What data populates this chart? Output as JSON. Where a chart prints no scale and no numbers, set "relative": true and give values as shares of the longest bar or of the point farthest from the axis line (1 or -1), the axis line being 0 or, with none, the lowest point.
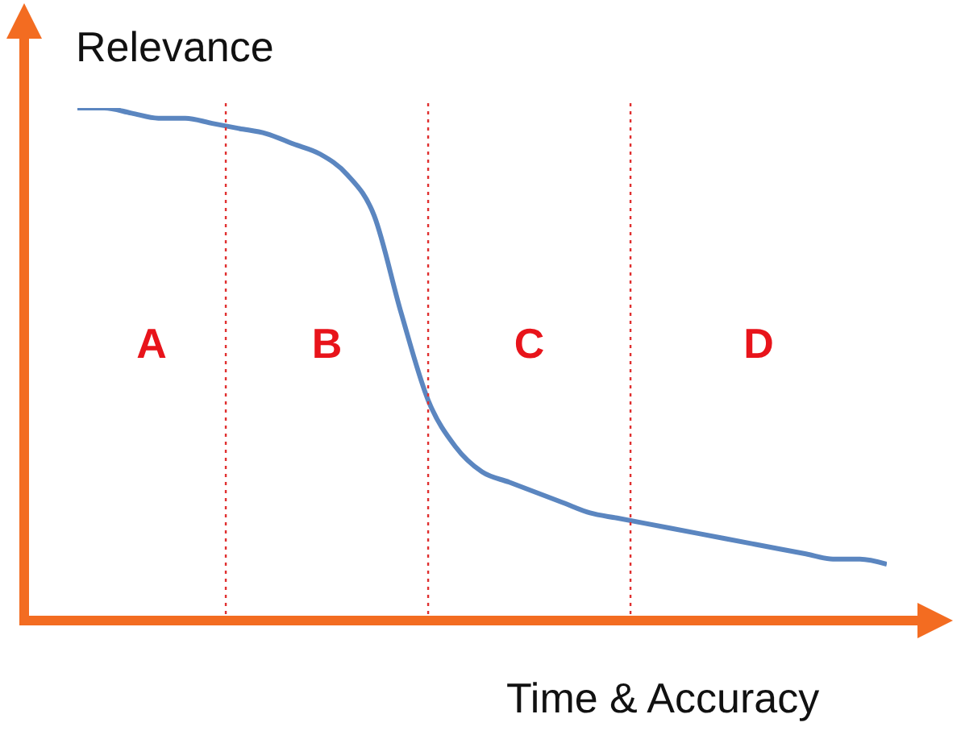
{
  "chart_data": {
    "type": "line",
    "relative": true,
    "xlabel": "Time & Accuracy",
    "ylabel": "Relevance",
    "categories": [
      null,
      null,
      null,
      null,
      null,
      null,
      null,
      null,
      null,
      null,
      null,
      null,
      null,
      null,
      null,
      null,
      null,
      null,
      null,
      null,
      null,
      null,
      null,
      null,
      null,
      null,
      null,
      null,
      null,
      null,
      null
    ],
    "series": [
      {
        "color": "#5b86c0",
        "values": [
          1,
          1,
          0.99,
          0.98,
          0.98,
          0.97,
          0.96,
          0.95,
          0.93,
          0.91,
          0.87,
          0.79,
          0.6,
          0.43,
          0.34,
          0.29,
          0.27,
          0.25,
          0.23,
          0.21,
          0.2,
          0.19,
          0.18,
          0.17,
          0.16,
          0.15,
          0.14,
          0.13,
          0.12,
          0.12,
          0.11
        ]
      }
    ],
    "annotations": [
      "A",
      "B",
      "C",
      "D"
    ],
    "marker": "none",
    "line_style": "solid",
    "grid": false,
    "legend": false
  }
}
